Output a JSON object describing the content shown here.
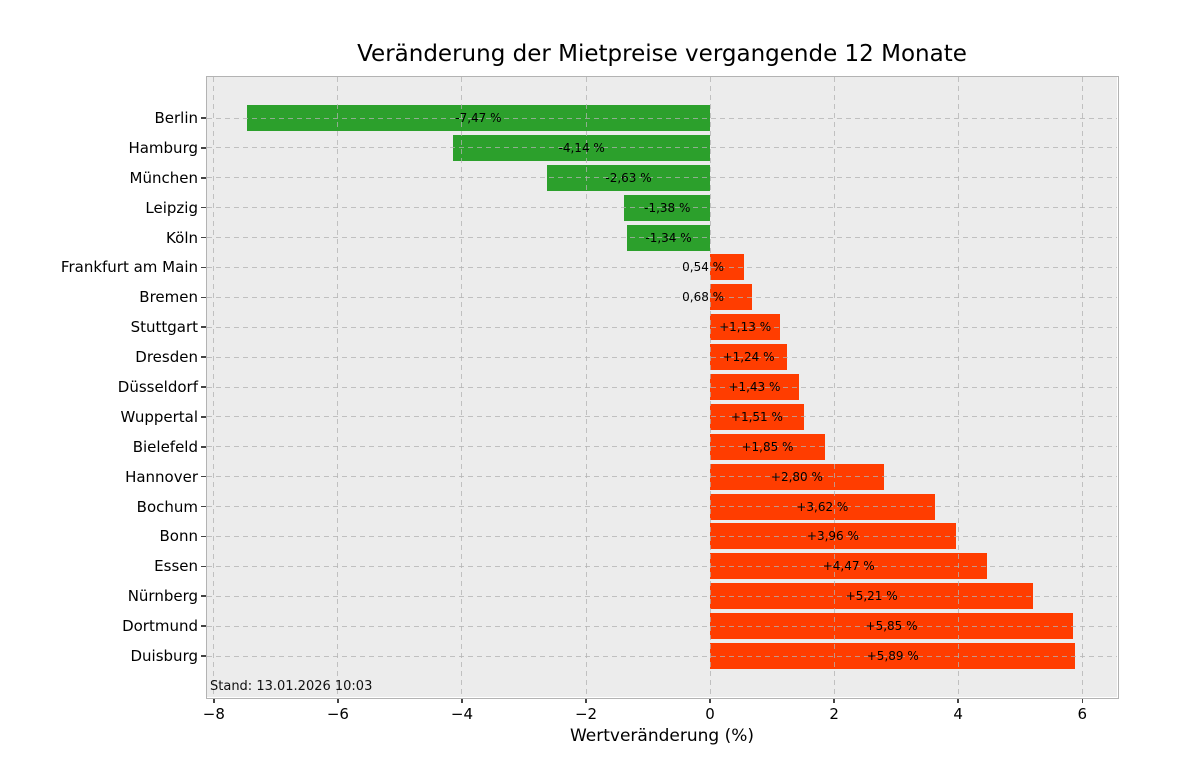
{
  "chart_data": {
    "type": "bar",
    "orientation": "horizontal",
    "title": "Veränderung der Mietpreise vergangende 12 Monate",
    "xlabel": "Wertveränderung (%)",
    "ylabel": "",
    "annotation": "Stand: 13.01.2026 10:03",
    "categories": [
      "Berlin",
      "Hamburg",
      "München",
      "Leipzig",
      "Köln",
      "Frankfurt am Main",
      "Bremen",
      "Stuttgart",
      "Dresden",
      "Düsseldorf",
      "Wuppertal",
      "Bielefeld",
      "Hannover",
      "Bochum",
      "Bonn",
      "Essen",
      "Nürnberg",
      "Dortmund",
      "Duisburg"
    ],
    "values": [
      -7.47,
      -4.14,
      -2.63,
      -1.38,
      -1.34,
      0.54,
      0.68,
      1.13,
      1.24,
      1.43,
      1.51,
      1.85,
      2.8,
      3.62,
      3.96,
      4.47,
      5.21,
      5.85,
      5.89
    ],
    "bar_labels": [
      "-7,47 %",
      "-4,14 %",
      "-2,63 %",
      "-1,38 %",
      "-1,34 %",
      "0,54 %",
      "0,68 %",
      "+1,13 %",
      "+1,24 %",
      "+1,43 %",
      "+1,51 %",
      "+1,85 %",
      "+2,80 %",
      "+3,62 %",
      "+3,96 %",
      "+4,47 %",
      "+5,21 %",
      "+5,85 %",
      "+5,89 %"
    ],
    "bar_label_placement": [
      "center",
      "center",
      "center",
      "center",
      "center",
      "outside-left",
      "outside-left",
      "center",
      "center",
      "center",
      "center",
      "center",
      "center",
      "center",
      "center",
      "center",
      "center",
      "center",
      "center"
    ],
    "xlim": [
      -8.11,
      6.56
    ],
    "xticks": [
      -8,
      -6,
      -4,
      -2,
      0,
      2,
      4,
      6
    ],
    "xtick_labels": [
      "−8",
      "−6",
      "−4",
      "−2",
      "0",
      "2",
      "4",
      "6"
    ],
    "grid": true,
    "grid_style": "dashed",
    "legend": null,
    "colors": {
      "negative_bar": "#2ca02c",
      "positive_bar": "#ff3d00",
      "plot_background": "#ececec",
      "grid_line": "#b2b2b2",
      "text": "#000000"
    }
  }
}
